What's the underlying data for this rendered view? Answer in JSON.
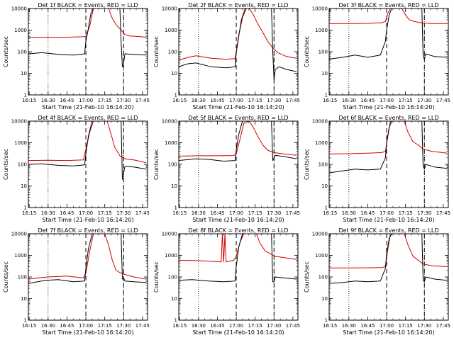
{
  "chart_data": [
    {
      "type": "line",
      "title": "Det 1f BLACK = Events, RED = LLD",
      "xlabel": "Start Time (21-Feb-10 16:14:20)",
      "ylabel": "Counts/sec",
      "x_ticks": [
        "16:15",
        "16:30",
        "16:45",
        "17:00",
        "17:15",
        "17:30",
        "17:45"
      ],
      "y_ticks": [
        "1",
        "10",
        "100",
        "1000",
        "10000"
      ],
      "y_scale": "log",
      "ylim": [
        1,
        10000
      ],
      "vlines_dotted": [
        "16:30",
        "17:30"
      ],
      "vlines_dashed": [
        "17:00",
        "17:30"
      ],
      "series": [
        {
          "color": "#d00000",
          "x": [
            "16:14",
            "16:30",
            "16:45",
            "16:58",
            "17:00",
            "17:03",
            "17:06",
            "17:09",
            "17:12",
            "17:14",
            "17:18",
            "17:21",
            "17:24",
            "17:28",
            "17:31",
            "17:35",
            "17:40",
            "17:48"
          ],
          "y": [
            470,
            460,
            470,
            490,
            520,
            1500,
            10000,
            10000,
            10000,
            10000,
            10000,
            3500,
            1800,
            1000,
            620,
            530,
            520,
            470
          ]
        },
        {
          "color": "#000000",
          "x": [
            "16:14",
            "16:25",
            "16:38",
            "16:50",
            "16:59",
            "17:00",
            "17:02",
            "17:04",
            "17:06",
            "17:08",
            "17:27",
            "17:28",
            "17:29",
            "17:30",
            "17:31",
            "17:38",
            "17:48"
          ],
          "y": [
            80,
            90,
            75,
            70,
            80,
            300,
            1200,
            6000,
            10000,
            10000,
            10000,
            300,
            20,
            30,
            80,
            75,
            70
          ]
        }
      ]
    },
    {
      "type": "line",
      "title": "Det 2f BLACK = Events, RED = LLD",
      "xlabel": "Start Time (21-Feb-10 16:14:20)",
      "ylabel": "Counts/sec",
      "x_ticks": [
        "16:15",
        "16:30",
        "16:45",
        "17:00",
        "17:15",
        "17:30",
        "17:45"
      ],
      "y_ticks": [
        "1",
        "10",
        "100",
        "1000",
        "10000"
      ],
      "y_scale": "log",
      "ylim": [
        1,
        10000
      ],
      "vlines_dotted": [
        "16:30",
        "17:30"
      ],
      "vlines_dashed": [
        "17:00",
        "17:30"
      ],
      "series": [
        {
          "color": "#d00000",
          "x": [
            "16:14",
            "16:22",
            "16:28",
            "16:40",
            "16:52",
            "16:59",
            "17:01",
            "17:04",
            "17:07",
            "17:10",
            "17:13",
            "17:17",
            "17:21",
            "17:25",
            "17:29",
            "17:33",
            "17:40",
            "17:48"
          ],
          "y": [
            40,
            55,
            65,
            50,
            45,
            48,
            200,
            3000,
            10000,
            10000,
            6000,
            2000,
            800,
            300,
            150,
            90,
            60,
            50
          ]
        },
        {
          "color": "#000000",
          "x": [
            "16:14",
            "16:22",
            "16:28",
            "16:40",
            "16:52",
            "16:59",
            "17:00",
            "17:02",
            "17:05",
            "17:08",
            "17:28",
            "17:29",
            "17:30",
            "17:31",
            "17:34",
            "17:40",
            "17:48"
          ],
          "y": [
            20,
            28,
            30,
            20,
            18,
            20,
            90,
            600,
            4000,
            10000,
            10000,
            100,
            5,
            15,
            20,
            15,
            12
          ]
        }
      ]
    },
    {
      "type": "line",
      "title": "Det 3f BLACK = Events, RED = LLD",
      "xlabel": "Start Time (21-Feb-10 16:14:20)",
      "ylabel": "Counts/sec",
      "x_ticks": [
        "16:15",
        "16:30",
        "16:45",
        "17:00",
        "17:15",
        "17:30",
        "17:45"
      ],
      "y_ticks": [
        "1",
        "10",
        "100",
        "1000",
        "10000"
      ],
      "y_scale": "log",
      "ylim": [
        1,
        10000
      ],
      "vlines_dotted": [
        "16:30",
        "17:30"
      ],
      "vlines_dashed": [
        "17:00",
        "17:30"
      ],
      "series": [
        {
          "color": "#d00000",
          "x": [
            "16:14",
            "16:30",
            "16:45",
            "16:56",
            "16:59",
            "17:01",
            "17:03",
            "17:10",
            "17:12",
            "17:15",
            "17:18",
            "17:22",
            "17:27",
            "17:35",
            "17:48"
          ],
          "y": [
            2000,
            2000,
            2050,
            2200,
            2500,
            6000,
            10000,
            10000,
            10000,
            5000,
            3000,
            2500,
            2200,
            2000,
            2000
          ]
        },
        {
          "color": "#000000",
          "x": [
            "16:14",
            "16:25",
            "16:35",
            "16:45",
            "16:55",
            "16:59",
            "17:00",
            "17:02",
            "17:04",
            "17:28",
            "17:29",
            "17:30",
            "17:31",
            "17:38",
            "17:48"
          ],
          "y": [
            45,
            55,
            70,
            55,
            70,
            300,
            1000,
            5000,
            10000,
            10000,
            60,
            45,
            80,
            60,
            55
          ]
        }
      ]
    },
    {
      "type": "line",
      "title": "Det 4f BLACK = Events, RED = LLD",
      "xlabel": "Start Time (21-Feb-10 16:14:20)",
      "ylabel": "Counts/sec",
      "x_ticks": [
        "16:15",
        "16:30",
        "16:45",
        "17:00",
        "17:15",
        "17:30",
        "17:45"
      ],
      "y_ticks": [
        "1",
        "10",
        "100",
        "1000",
        "10000"
      ],
      "y_scale": "log",
      "ylim": [
        1,
        10000
      ],
      "vlines_dotted": [
        "16:30",
        "17:30"
      ],
      "vlines_dashed": [
        "17:00",
        "17:30"
      ],
      "series": [
        {
          "color": "#d00000",
          "x": [
            "16:14",
            "16:30",
            "16:45",
            "16:58",
            "17:00",
            "17:03",
            "17:06",
            "17:15",
            "17:17",
            "17:20",
            "17:23",
            "17:27",
            "17:31",
            "17:38",
            "17:48"
          ],
          "y": [
            150,
            155,
            150,
            160,
            500,
            3000,
            10000,
            10000,
            10000,
            2500,
            600,
            250,
            180,
            160,
            120
          ]
        },
        {
          "color": "#000000",
          "x": [
            "16:14",
            "16:25",
            "16:38",
            "16:50",
            "16:59",
            "17:00",
            "17:02",
            "17:05",
            "17:28",
            "17:29",
            "17:30",
            "17:31",
            "17:38",
            "17:48"
          ],
          "y": [
            100,
            105,
            90,
            85,
            95,
            300,
            2000,
            10000,
            10000,
            20,
            40,
            80,
            75,
            60
          ]
        }
      ]
    },
    {
      "type": "line",
      "title": "Det 5f BLACK = Events, RED = LLD",
      "xlabel": "Start Time (21-Feb-10 16:14:20)",
      "ylabel": "Counts/sec",
      "x_ticks": [
        "16:15",
        "16:30",
        "16:45",
        "17:00",
        "17:15",
        "17:30",
        "17:45"
      ],
      "y_ticks": [
        "1",
        "10",
        "100",
        "1000",
        "10000"
      ],
      "y_scale": "log",
      "ylim": [
        1,
        10000
      ],
      "vlines_dotted": [
        "16:30",
        "17:30"
      ],
      "vlines_dashed": [
        "17:00",
        "17:30"
      ],
      "series": [
        {
          "color": "#d00000",
          "x": [
            "16:14",
            "16:30",
            "16:45",
            "16:58",
            "17:00",
            "17:03",
            "17:06",
            "17:10",
            "17:13",
            "17:17",
            "17:21",
            "17:25",
            "17:30",
            "17:38",
            "17:48"
          ],
          "y": [
            240,
            250,
            250,
            255,
            300,
            1500,
            8000,
            10000,
            6000,
            2000,
            800,
            450,
            350,
            300,
            260
          ]
        },
        {
          "color": "#000000",
          "x": [
            "16:14",
            "16:28",
            "16:38",
            "16:50",
            "16:59",
            "17:00",
            "17:02",
            "17:05",
            "17:28",
            "17:29",
            "17:30",
            "17:31",
            "17:38",
            "17:48"
          ],
          "y": [
            150,
            180,
            170,
            140,
            150,
            450,
            2500,
            10000,
            10000,
            150,
            200,
            260,
            230,
            180
          ]
        }
      ]
    },
    {
      "type": "line",
      "title": "Det 6f BLACK = Events, RED = LLD",
      "xlabel": "Start Time (21-Feb-10 16:14:20)",
      "ylabel": "Counts/sec",
      "x_ticks": [
        "16:15",
        "16:30",
        "16:45",
        "17:00",
        "17:15",
        "17:30",
        "17:45"
      ],
      "y_ticks": [
        "1",
        "10",
        "100",
        "1000",
        "10000"
      ],
      "y_scale": "log",
      "ylim": [
        1,
        10000
      ],
      "vlines_dotted": [
        "16:30",
        "17:30"
      ],
      "vlines_dashed": [
        "17:00",
        "17:30"
      ],
      "series": [
        {
          "color": "#d00000",
          "x": [
            "16:14",
            "16:30",
            "16:45",
            "16:56",
            "16:59",
            "17:01",
            "17:03",
            "17:12",
            "17:14",
            "17:17",
            "17:21",
            "17:25",
            "17:29",
            "17:36",
            "17:48"
          ],
          "y": [
            300,
            310,
            330,
            350,
            400,
            2000,
            10000,
            10000,
            10000,
            3000,
            1100,
            800,
            500,
            400,
            330
          ]
        },
        {
          "color": "#000000",
          "x": [
            "16:14",
            "16:25",
            "16:35",
            "16:45",
            "16:55",
            "16:59",
            "17:00",
            "17:02",
            "17:04",
            "17:28",
            "17:29",
            "17:30",
            "17:31",
            "17:38",
            "17:48"
          ],
          "y": [
            40,
            50,
            60,
            55,
            60,
            200,
            1000,
            5000,
            10000,
            10000,
            80,
            60,
            100,
            75,
            65
          ]
        }
      ]
    },
    {
      "type": "line",
      "title": "Det 7f BLACK = Events, RED = LLD",
      "xlabel": "Start Time (21-Feb-10 16:14:20)",
      "ylabel": "Counts/sec",
      "x_ticks": [
        "16:15",
        "16:30",
        "16:45",
        "17:00",
        "17:15",
        "17:30",
        "17:45"
      ],
      "y_ticks": [
        "1",
        "10",
        "100",
        "1000",
        "10000"
      ],
      "y_scale": "log",
      "ylim": [
        1,
        10000
      ],
      "vlines_dotted": [
        "16:30",
        "17:30"
      ],
      "vlines_dashed": [
        "17:00",
        "17:30"
      ],
      "series": [
        {
          "color": "#d00000",
          "x": [
            "16:14",
            "16:30",
            "16:45",
            "16:58",
            "17:00",
            "17:03",
            "17:06",
            "17:13",
            "17:15",
            "17:18",
            "17:21",
            "17:24",
            "17:27",
            "17:31",
            "17:38",
            "17:48"
          ],
          "y": [
            80,
            100,
            110,
            90,
            150,
            1500,
            10000,
            10000,
            10000,
            3000,
            600,
            200,
            160,
            130,
            100,
            80
          ]
        },
        {
          "color": "#000000",
          "x": [
            "16:14",
            "16:28",
            "16:38",
            "16:50",
            "16:59",
            "17:00",
            "17:02",
            "17:05",
            "17:28",
            "17:29",
            "17:30",
            "17:31",
            "17:38",
            "17:48"
          ],
          "y": [
            50,
            70,
            75,
            60,
            65,
            250,
            2000,
            10000,
            10000,
            80,
            90,
            65,
            60,
            55
          ]
        }
      ]
    },
    {
      "type": "line",
      "title": "Det 8f BLACK = Events, RED = LLD",
      "xlabel": "Start Time (21-Feb-10 16:14:20)",
      "ylabel": "Counts/sec",
      "x_ticks": [
        "16:15",
        "16:30",
        "16:45",
        "17:00",
        "17:15",
        "17:30",
        "17:45"
      ],
      "y_ticks": [
        "1",
        "10",
        "100",
        "1000",
        "10000"
      ],
      "y_scale": "log",
      "ylim": [
        1,
        10000
      ],
      "vlines_dotted": [
        "16:30",
        "17:30"
      ],
      "vlines_dashed": [
        "17:00",
        "17:30"
      ],
      "series": [
        {
          "color": "#d00000",
          "x": [
            "16:14",
            "16:25",
            "16:35",
            "16:48",
            "16:49",
            "16:50",
            "16:51",
            "16:52",
            "16:58",
            "17:00",
            "17:03",
            "17:06",
            "17:13",
            "17:16",
            "17:19",
            "17:23",
            "17:27",
            "17:31",
            "17:40",
            "17:48"
          ],
          "y": [
            600,
            580,
            550,
            500,
            10000,
            500,
            10000,
            500,
            600,
            900,
            4000,
            10000,
            10000,
            10000,
            3500,
            1600,
            1200,
            900,
            750,
            650
          ]
        },
        {
          "color": "#000000",
          "x": [
            "16:14",
            "16:25",
            "16:38",
            "16:50",
            "16:59",
            "17:00",
            "17:02",
            "17:05",
            "17:28",
            "17:29",
            "17:30",
            "17:31",
            "17:38",
            "17:48"
          ],
          "y": [
            70,
            75,
            65,
            60,
            65,
            300,
            2500,
            10000,
            10000,
            60,
            60,
            100,
            90,
            80
          ]
        }
      ]
    },
    {
      "type": "line",
      "title": "Det 9f BLACK = Events, RED = LLD",
      "xlabel": "Start Time (21-Feb-10 16:14:20)",
      "ylabel": "Counts/sec",
      "x_ticks": [
        "16:15",
        "16:30",
        "16:45",
        "17:00",
        "17:15",
        "17:30",
        "17:45"
      ],
      "y_ticks": [
        "1",
        "10",
        "100",
        "1000",
        "10000"
      ],
      "y_scale": "log",
      "ylim": [
        1,
        10000
      ],
      "vlines_dotted": [
        "16:30",
        "17:30"
      ],
      "vlines_dashed": [
        "17:00",
        "17:30"
      ],
      "series": [
        {
          "color": "#d00000",
          "x": [
            "16:14",
            "16:30",
            "16:45",
            "16:56",
            "16:59",
            "17:01",
            "17:03",
            "17:12",
            "17:14",
            "17:17",
            "17:21",
            "17:25",
            "17:29",
            "17:36",
            "17:48"
          ],
          "y": [
            260,
            260,
            265,
            270,
            300,
            2000,
            10000,
            10000,
            10000,
            3000,
            900,
            600,
            400,
            330,
            300
          ]
        },
        {
          "color": "#000000",
          "x": [
            "16:14",
            "16:25",
            "16:35",
            "16:45",
            "16:55",
            "16:59",
            "17:00",
            "17:02",
            "17:04",
            "17:28",
            "17:29",
            "17:30",
            "17:31",
            "17:38",
            "17:48"
          ],
          "y": [
            50,
            55,
            65,
            60,
            65,
            250,
            1200,
            6000,
            10000,
            10000,
            70,
            60,
            100,
            80,
            70
          ]
        }
      ]
    }
  ]
}
